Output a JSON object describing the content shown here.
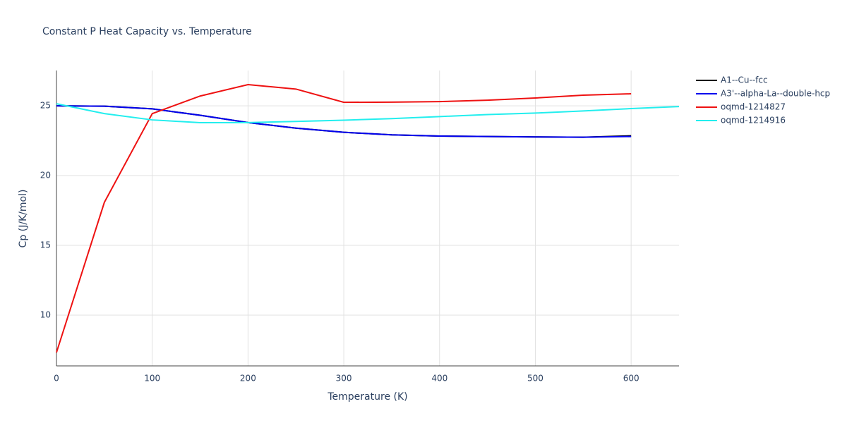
{
  "chart_data": {
    "type": "line",
    "title": "Constant P Heat Capacity vs. Temperature",
    "x_label": "Temperature (K)",
    "y_label": "Cp (J/K/mol)",
    "x": [
      0,
      50,
      100,
      150,
      200,
      250,
      300,
      350,
      400,
      450,
      500,
      550,
      600,
      650
    ],
    "series": [
      {
        "name": "A1--Cu--fcc",
        "color": "#000000",
        "values": [
          25.0,
          24.97,
          24.78,
          24.32,
          23.8,
          23.4,
          23.1,
          22.92,
          22.83,
          22.8,
          22.77,
          22.75,
          22.85,
          null
        ]
      },
      {
        "name": "A3'--alpha-La--double-hcp",
        "color": "#0000ee",
        "values": [
          25.0,
          24.97,
          24.78,
          24.32,
          23.8,
          23.4,
          23.1,
          22.92,
          22.83,
          22.8,
          22.77,
          22.75,
          22.8,
          null
        ]
      },
      {
        "name": "oqmd-1214827",
        "color": "#ee1111",
        "values": [
          7.32,
          18.08,
          24.44,
          25.7,
          26.52,
          26.2,
          25.25,
          25.26,
          25.3,
          25.4,
          25.56,
          25.76,
          25.86,
          null
        ]
      },
      {
        "name": "oqmd-1214916",
        "color": "#22eeee",
        "values": [
          25.15,
          24.44,
          23.99,
          23.79,
          23.8,
          23.88,
          23.97,
          24.08,
          24.23,
          24.37,
          24.48,
          24.63,
          24.8,
          24.95
        ]
      }
    ],
    "xlim": [
      0,
      650
    ],
    "xticks": [
      0,
      100,
      200,
      300,
      400,
      500,
      600
    ],
    "ylim": [
      6.36,
      27.53
    ],
    "yticks": [
      10,
      15,
      20,
      25
    ],
    "grid": true
  }
}
